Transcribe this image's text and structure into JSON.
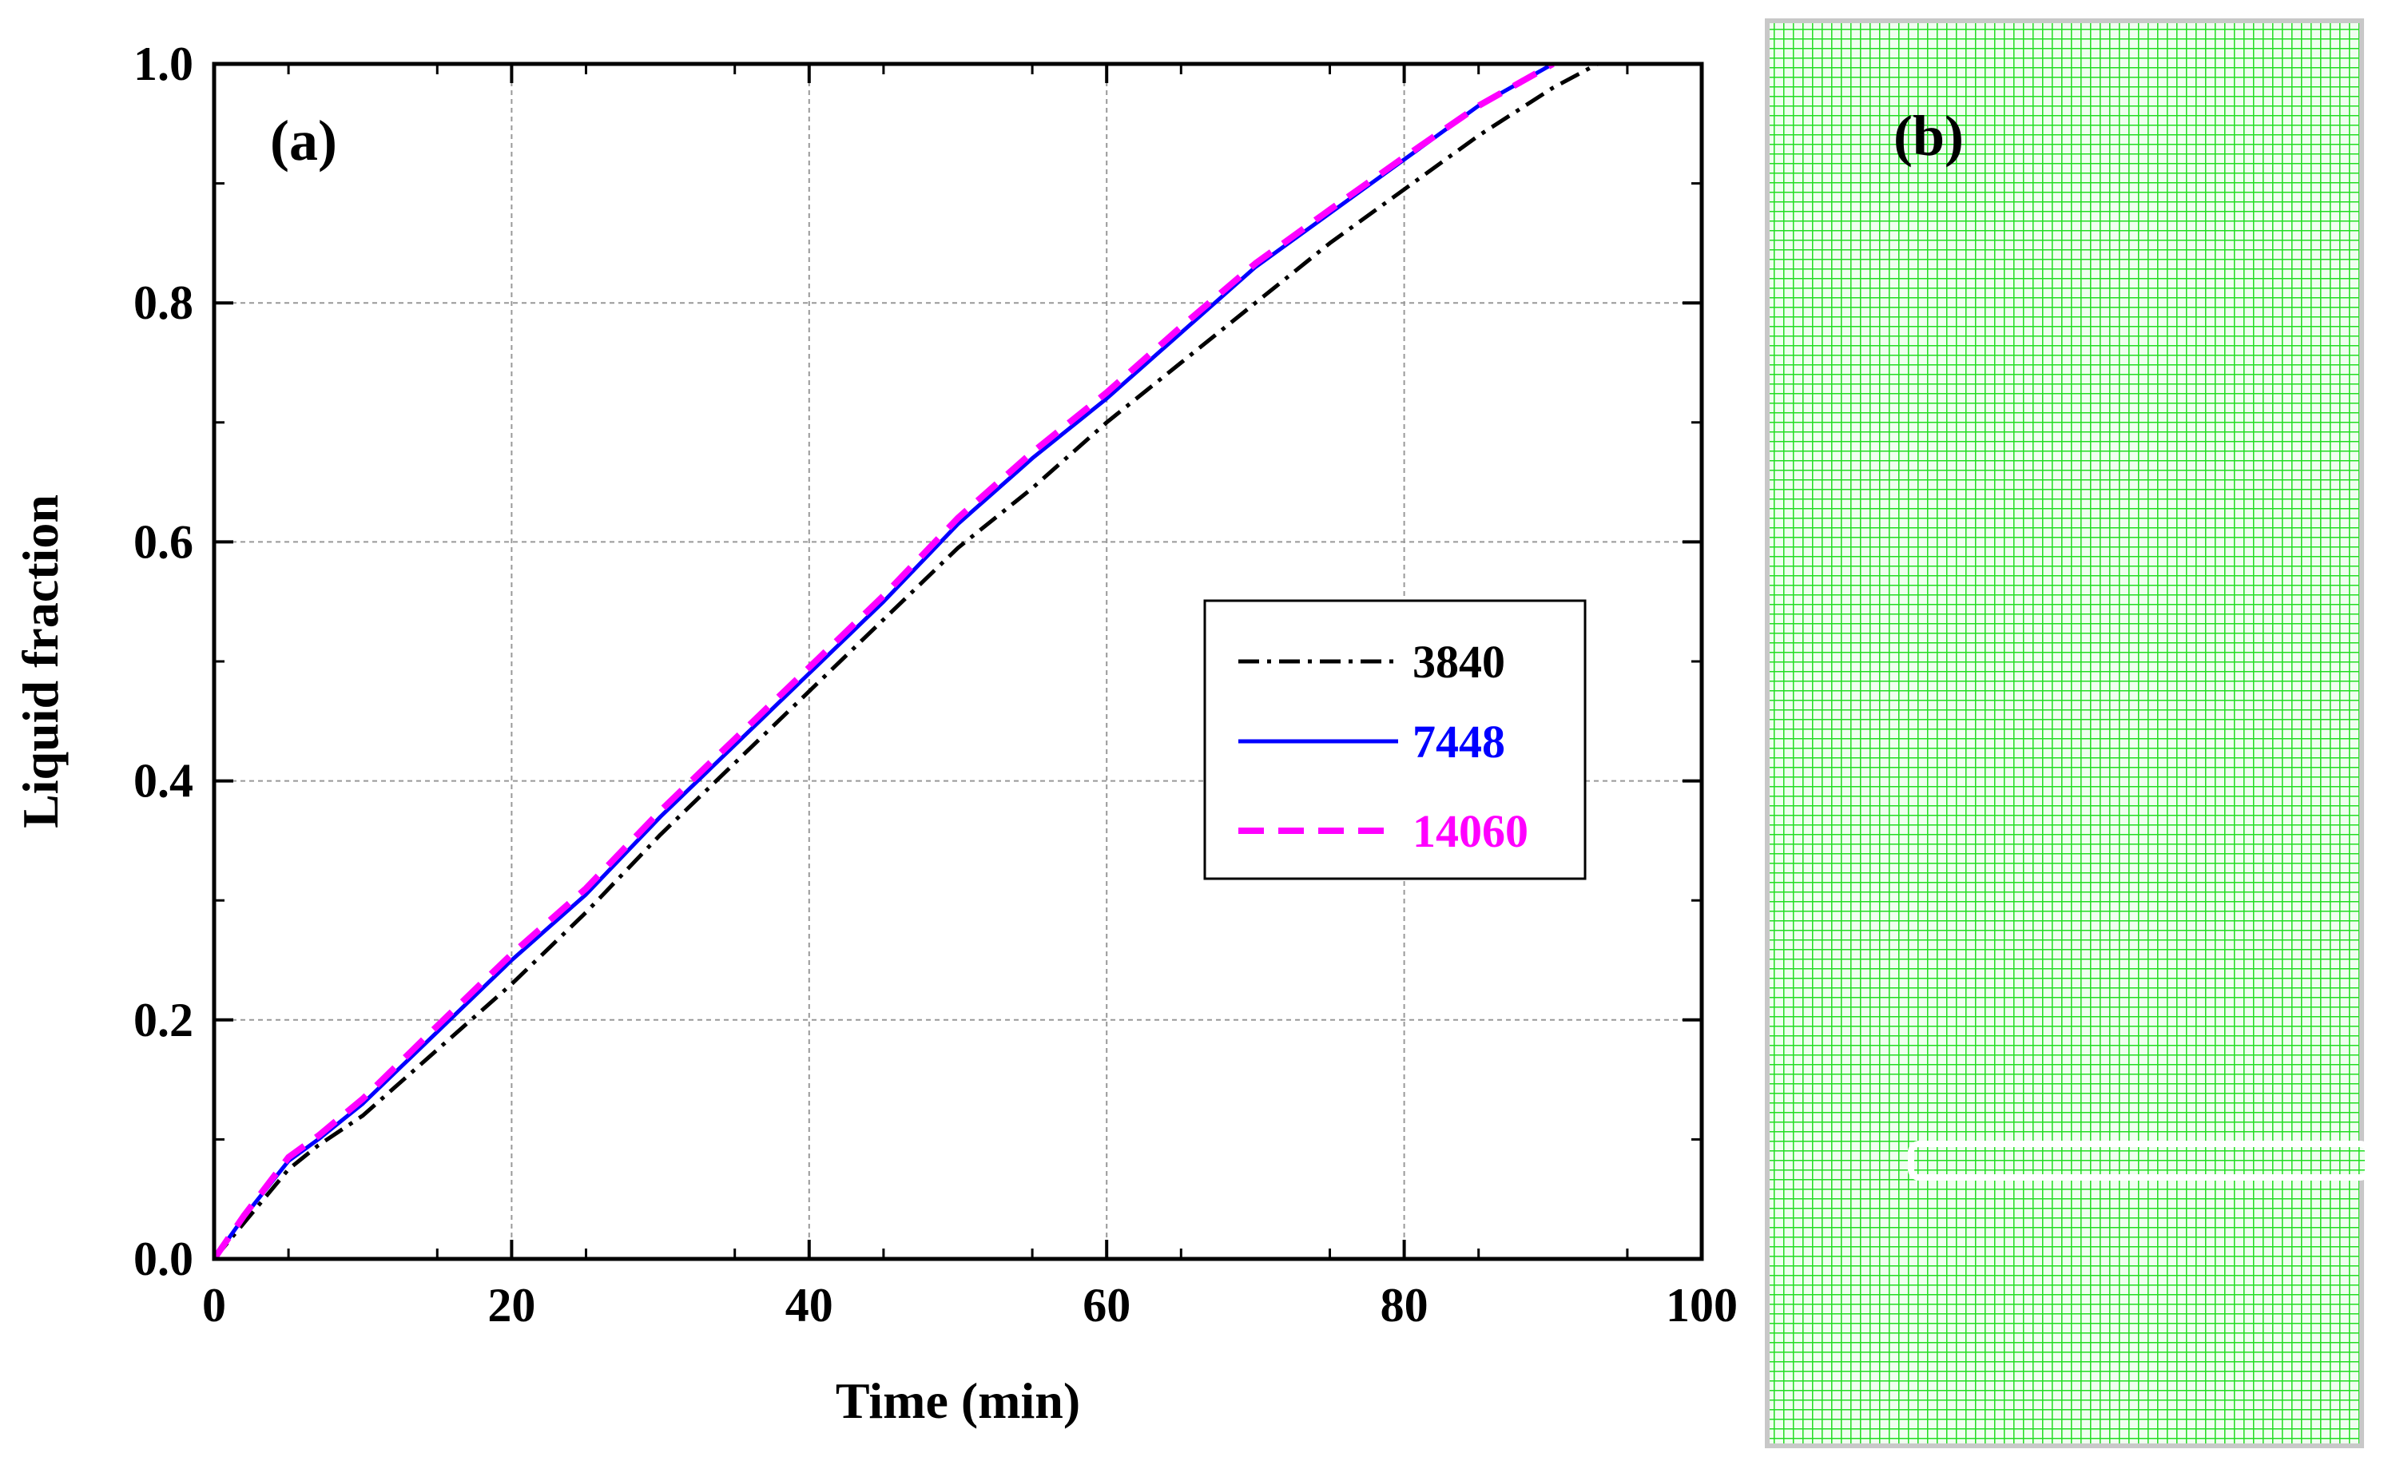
{
  "panels": {
    "a_label": "(a)",
    "b_label": "(b)"
  },
  "chart_data": {
    "type": "line",
    "xlabel": "Time (min)",
    "ylabel": "Liquid fraction",
    "xlim": [
      0,
      100
    ],
    "ylim": [
      0,
      1.0
    ],
    "xticks": [
      0,
      20,
      40,
      60,
      80,
      100
    ],
    "xtick_labels": [
      "0",
      "20",
      "40",
      "60",
      "80",
      "100"
    ],
    "yticks": [
      0,
      0.2,
      0.4,
      0.6,
      0.8,
      1.0
    ],
    "ytick_labels": [
      "0.0",
      "0.2",
      "0.4",
      "0.6",
      "0.8",
      "1.0"
    ],
    "grid": true,
    "legend_position": "center-right",
    "series": [
      {
        "name": "3840",
        "color": "#000000",
        "style": "dash-dot",
        "x": [
          0,
          2,
          5,
          7,
          10,
          15,
          20,
          25,
          30,
          35,
          40,
          45,
          50,
          55,
          60,
          65,
          70,
          75,
          80,
          85,
          90,
          93
        ],
        "y": [
          0,
          0.03,
          0.075,
          0.095,
          0.12,
          0.175,
          0.23,
          0.29,
          0.355,
          0.415,
          0.475,
          0.535,
          0.595,
          0.645,
          0.7,
          0.75,
          0.8,
          0.85,
          0.895,
          0.94,
          0.98,
          1.0
        ]
      },
      {
        "name": "7448",
        "color": "#0000ff",
        "style": "solid",
        "x": [
          0,
          2,
          5,
          7,
          10,
          15,
          20,
          25,
          30,
          35,
          40,
          45,
          50,
          55,
          60,
          65,
          70,
          75,
          80,
          85,
          90
        ],
        "y": [
          0,
          0.035,
          0.082,
          0.1,
          0.13,
          0.19,
          0.25,
          0.305,
          0.37,
          0.43,
          0.49,
          0.55,
          0.615,
          0.67,
          0.72,
          0.775,
          0.83,
          0.875,
          0.92,
          0.965,
          1.0
        ]
      },
      {
        "name": "14060",
        "color": "#ff00ff",
        "style": "dash",
        "x": [
          0,
          2,
          5,
          7,
          10,
          15,
          20,
          25,
          30,
          35,
          40,
          45,
          50,
          55,
          60,
          65,
          70,
          75,
          80,
          85,
          90
        ],
        "y": [
          0,
          0.036,
          0.085,
          0.103,
          0.134,
          0.195,
          0.255,
          0.31,
          0.375,
          0.435,
          0.495,
          0.555,
          0.62,
          0.675,
          0.725,
          0.78,
          0.833,
          0.878,
          0.922,
          0.965,
          1.0
        ]
      }
    ]
  },
  "colors": {
    "mesh_green": "#22dd22",
    "mesh_white": "#ffffff"
  }
}
